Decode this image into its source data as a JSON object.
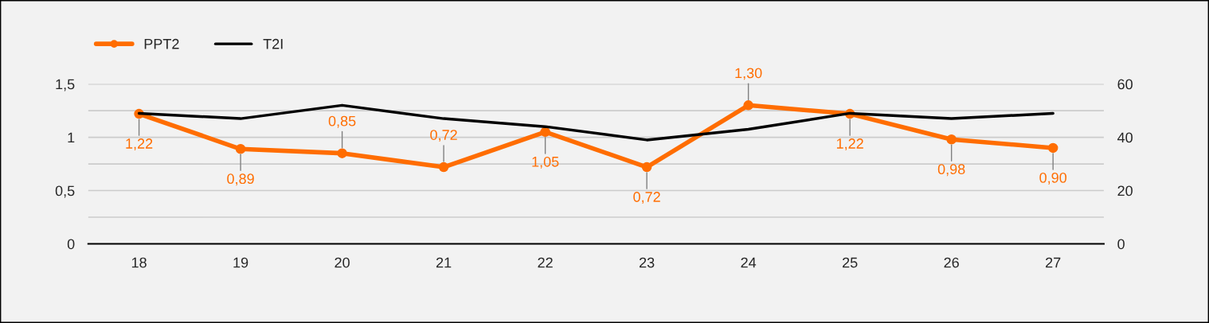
{
  "chart_data": {
    "type": "line",
    "categories": [
      "18",
      "19",
      "20",
      "21",
      "22",
      "23",
      "24",
      "25",
      "26",
      "27"
    ],
    "series": [
      {
        "name": "PPT2",
        "color": "#ff6d01",
        "marker": "circle",
        "values": [
          1.22,
          0.89,
          0.85,
          0.72,
          1.05,
          0.72,
          1.3,
          1.22,
          0.98,
          0.9
        ],
        "value_labels": [
          "1,22",
          "0,89",
          "0,85",
          "0,72",
          "1,05",
          "0,72",
          "1,30",
          "1,22",
          "0,98",
          "0,90"
        ]
      },
      {
        "name": "T2I",
        "color": "#000000",
        "marker": "none",
        "axis": "y2",
        "values": [
          49,
          47,
          52,
          47,
          44,
          39,
          43,
          49,
          47,
          49
        ]
      }
    ],
    "ylim": [
      0,
      1.5
    ],
    "yticks": [
      {
        "value": 0,
        "label": "0"
      },
      {
        "value": 0.25,
        "label": null
      },
      {
        "value": 0.5,
        "label": "0,5"
      },
      {
        "value": 0.75,
        "label": null
      },
      {
        "value": 1,
        "label": "1"
      },
      {
        "value": 1.25,
        "label": null
      },
      {
        "value": 1.5,
        "label": "1,5"
      }
    ],
    "y2lim": [
      0,
      60
    ],
    "y2ticks": [
      0,
      20,
      40,
      60
    ],
    "grid": "y",
    "legend": "top left"
  }
}
